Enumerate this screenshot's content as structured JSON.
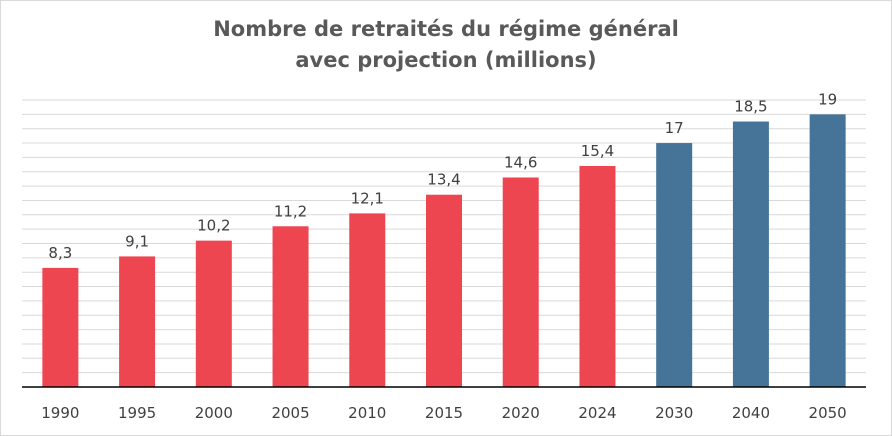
{
  "chart_data": {
    "type": "bar",
    "title": "Nombre de retraités du régime général\navec projection  (millions)",
    "categories": [
      "1990",
      "1995",
      "2000",
      "2005",
      "2010",
      "2015",
      "2020",
      "2024",
      "2030",
      "2040",
      "2050"
    ],
    "values": [
      8.3,
      9.1,
      10.2,
      11.2,
      12.1,
      13.4,
      14.6,
      15.4,
      17,
      18.5,
      19
    ],
    "data_labels": [
      "8,3",
      "9,1",
      "10,2",
      "11,2",
      "12,1",
      "13,4",
      "14,6",
      "15,4",
      "17",
      "18,5",
      "19"
    ],
    "bar_types": [
      "historical",
      "historical",
      "historical",
      "historical",
      "historical",
      "historical",
      "historical",
      "historical",
      "projection",
      "projection",
      "projection"
    ],
    "colors": {
      "historical": "#ee4650",
      "projection": "#467499",
      "gridline": "#d9d9d9",
      "axis": "#000000"
    },
    "ylim": [
      0,
      20
    ],
    "grid": true,
    "legend": "none"
  }
}
